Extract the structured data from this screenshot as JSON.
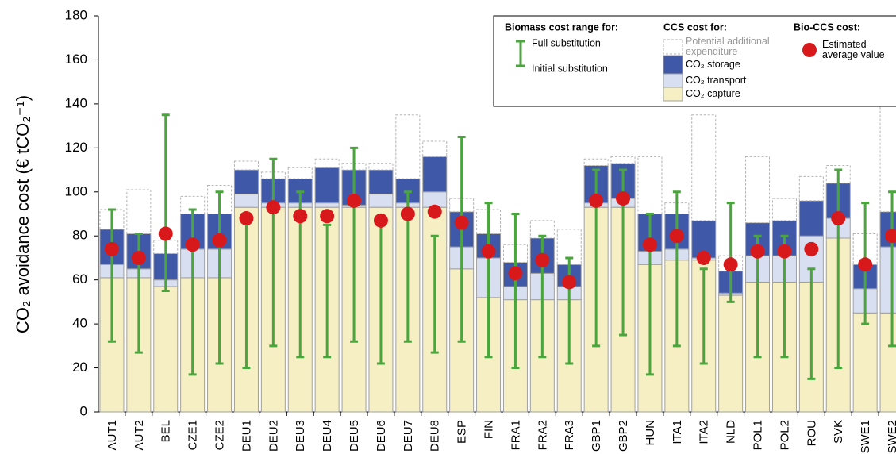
{
  "chart_data": {
    "type": "stacked-bar",
    "y_label": "CO₂ avoidance cost (€ tCO₂⁻¹)",
    "categories": [
      "AUT1",
      "AUT2",
      "BEL",
      "CZE1",
      "CZE2",
      "DEU1",
      "DEU2",
      "DEU3",
      "DEU4",
      "DEU5",
      "DEU6",
      "DEU7",
      "DEU8",
      "ESP",
      "FIN",
      "FRA1",
      "FRA2",
      "FRA3",
      "GBP1",
      "GBP2",
      "HUN",
      "ITA1",
      "ITA2",
      "NLD",
      "POL1",
      "POL2",
      "ROU",
      "SVK",
      "SWE1",
      "SWE2"
    ],
    "ylim": [
      0,
      180
    ],
    "yticks": [
      0,
      20,
      40,
      60,
      80,
      100,
      120,
      140,
      160,
      180
    ],
    "grid": false,
    "stack_title": "CCS cost for:",
    "series": [
      {
        "name": "CO₂ capture",
        "color": "#f6efc4",
        "values": [
          61,
          61,
          57,
          61,
          61,
          93,
          93,
          93,
          93,
          93,
          93,
          93,
          93,
          65,
          52,
          51,
          51,
          51,
          93,
          93,
          67,
          69,
          69,
          53,
          59,
          59,
          59,
          79,
          45,
          45
        ]
      },
      {
        "name": "CO₂ transport",
        "color": "#d8dff0",
        "values": [
          6,
          4,
          3,
          13,
          13,
          6,
          2,
          2,
          2,
          1,
          6,
          2,
          7,
          10,
          18,
          6,
          12,
          6,
          2,
          4,
          6,
          5,
          1,
          1,
          12,
          12,
          21,
          9,
          11,
          30
        ]
      },
      {
        "name": "CO₂ storage",
        "color": "#3f59a8",
        "values": [
          16,
          16,
          12,
          16,
          16,
          11,
          11,
          11,
          16,
          16,
          11,
          11,
          16,
          16,
          11,
          11,
          16,
          10,
          17,
          16,
          17,
          16,
          17,
          10,
          15,
          16,
          16,
          16,
          11,
          16
        ]
      },
      {
        "name": "Potential additional expenditure",
        "color": "#ffffff",
        "values": [
          9,
          20,
          6,
          8,
          13,
          4,
          3,
          5,
          4,
          3,
          3,
          29,
          7,
          6,
          11,
          8,
          8,
          16,
          3,
          3,
          26,
          5,
          48,
          7,
          30,
          10,
          11,
          8,
          14,
          49
        ]
      }
    ],
    "ranges": {
      "title": "Biomass cost range for:",
      "color": "#4aa63c",
      "high": {
        "name": "Full substitution",
        "values": [
          92,
          81,
          135,
          92,
          100,
          88,
          115,
          100,
          85,
          120,
          87,
          100,
          80,
          125,
          95,
          90,
          80,
          70,
          110,
          110,
          90,
          100,
          65,
          95,
          80,
          80,
          65,
          110,
          95,
          100
        ]
      },
      "low": {
        "name": "Initial substitution",
        "values": [
          32,
          27,
          55,
          17,
          22,
          20,
          30,
          25,
          25,
          32,
          22,
          32,
          27,
          32,
          25,
          20,
          25,
          22,
          30,
          35,
          17,
          30,
          22,
          50,
          25,
          25,
          15,
          20,
          40,
          30
        ]
      }
    },
    "dots": {
      "title": "Bio-CCS cost:",
      "name": "Estimated average value",
      "color": "#d7191c",
      "values": [
        74,
        70,
        81,
        76,
        78,
        88,
        93,
        89,
        89,
        96,
        87,
        90,
        91,
        86,
        73,
        63,
        69,
        59,
        96,
        97,
        76,
        80,
        70,
        67,
        73,
        73,
        74,
        88,
        67,
        80
      ]
    }
  }
}
